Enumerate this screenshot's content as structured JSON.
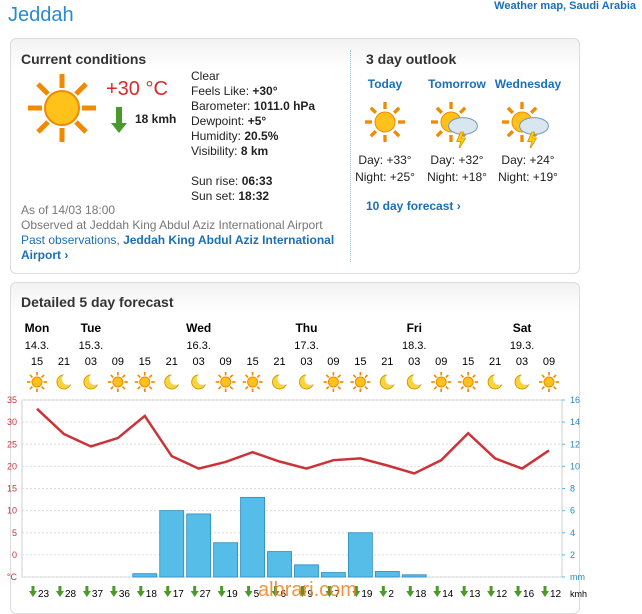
{
  "header": {
    "title": "Jeddah",
    "map_link": "Weather map, Saudi Arabia"
  },
  "current": {
    "heading": "Current conditions",
    "temperature": "+30 °C",
    "wind": "18 kmh",
    "condition": "Clear",
    "details": [
      [
        "Feels Like:",
        "+30°"
      ],
      [
        "Barometer:",
        "1011.0 hPa"
      ],
      [
        "Dewpoint:",
        "+5°"
      ],
      [
        "Humidity:",
        "20.5%"
      ],
      [
        "Visibility:",
        "8 km"
      ]
    ],
    "sun": [
      [
        "Sun rise:",
        "06:33"
      ],
      [
        "Sun set:",
        "18:32"
      ]
    ],
    "as_of": "As of 14/03 18:00",
    "observed": "Observed at Jeddah King Abdul Aziz International Airport",
    "past_link": "Past observations,",
    "station_link": "Jeddah King Abdul Aziz International Airport ›"
  },
  "outlook": {
    "heading": "3 day outlook",
    "days": [
      {
        "name": "Today",
        "day_label": "Day:",
        "day": "+33°",
        "night_label": "Night:",
        "night": "+25°"
      },
      {
        "name": "Tomorrow",
        "day_label": "Day:",
        "day": "+32°",
        "night_label": "Night:",
        "night": "+18°"
      },
      {
        "name": "Wednesday",
        "day_label": "Day:",
        "day": "+24°",
        "night_label": "Night:",
        "night": "+19°"
      }
    ],
    "link": "10 day forecast ›"
  },
  "forecast": {
    "heading": "Detailed 5 day forecast"
  },
  "watermark": "albrari.com",
  "chart_data": {
    "type": "combo",
    "categories": [
      "15",
      "21",
      "03",
      "09",
      "15",
      "21",
      "03",
      "09",
      "15",
      "21",
      "03",
      "09",
      "15",
      "21",
      "03",
      "09",
      "15",
      "21",
      "03",
      "09"
    ],
    "day_labels": [
      "Mon",
      null,
      "Tue",
      null,
      null,
      null,
      "Wed",
      null,
      null,
      null,
      "Thu",
      null,
      null,
      null,
      "Fri",
      null,
      null,
      null,
      "Sat",
      null
    ],
    "date_labels": [
      "14.3.",
      null,
      "15.3.",
      null,
      null,
      null,
      "16.3.",
      null,
      null,
      null,
      "17.3.",
      null,
      null,
      null,
      "18.3.",
      null,
      null,
      null,
      "19.3.",
      null
    ],
    "series": [
      {
        "type": "line",
        "color": "#cc3338",
        "values": [
          33,
          27.3,
          24.5,
          26.4,
          31.4,
          22.3,
          19.5,
          21,
          23.2,
          21.1,
          19.5,
          21.4,
          21.8,
          20.2,
          18.4,
          21.4,
          27.5,
          21.8,
          19.5,
          23.6
        ]
      },
      {
        "type": "bar",
        "axis": "y2",
        "color": "#56bde9",
        "values": [
          0,
          0,
          0,
          0,
          0.3,
          6,
          5.7,
          3.1,
          7.2,
          2.3,
          1.1,
          0.4,
          4,
          0.5,
          0.2,
          0,
          0,
          0,
          0,
          0
        ]
      }
    ],
    "ylim": [
      -5,
      35
    ],
    "yticks": [
      {
        "value": -5,
        "label": "°C"
      },
      0,
      5,
      10,
      15,
      20,
      25,
      30,
      35
    ],
    "y2lim": [
      0,
      16
    ],
    "y2ticks": [
      {
        "value": 0,
        "label": "mm"
      },
      2,
      4,
      6,
      8,
      10,
      12,
      14,
      16
    ],
    "grid": true,
    "wind": {
      "values": [
        23,
        28,
        37,
        36,
        18,
        17,
        27,
        19,
        5,
        6,
        9,
        7,
        19,
        2,
        18,
        14,
        13,
        12,
        16,
        12
      ],
      "unit": "kmh"
    }
  }
}
